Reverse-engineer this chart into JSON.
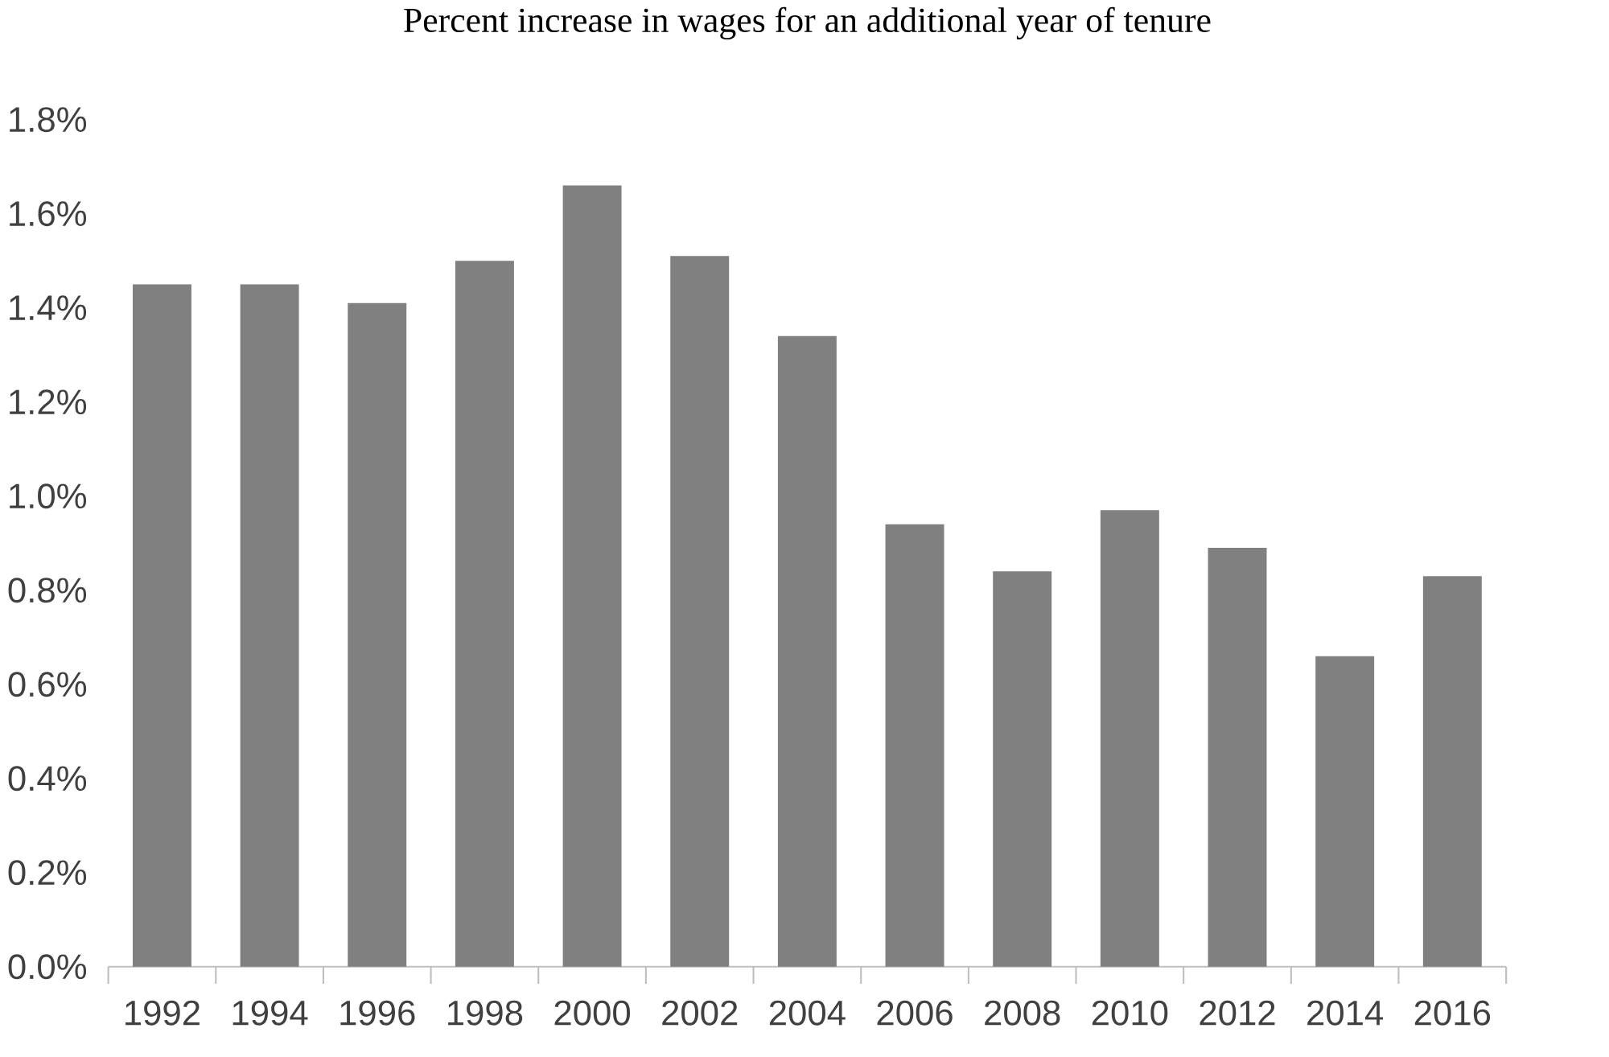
{
  "chart_data": {
    "type": "bar",
    "title": "Percent increase in wages for an additional year of tenure",
    "categories": [
      "1992",
      "1994",
      "1996",
      "1998",
      "2000",
      "2002",
      "2004",
      "2006",
      "2008",
      "2010",
      "2012",
      "2014",
      "2016"
    ],
    "values": [
      1.45,
      1.45,
      1.41,
      1.5,
      1.66,
      1.51,
      1.34,
      0.94,
      0.84,
      0.97,
      0.89,
      0.66,
      0.83
    ],
    "color": "#808080",
    "ylim": [
      0,
      1.8
    ],
    "yticks": [
      {
        "value": 0,
        "label": "0.0%"
      },
      {
        "value": 0.2,
        "label": "0.2%"
      },
      {
        "value": 0.4,
        "label": "0.4%"
      },
      {
        "value": 0.6,
        "label": "0.6%"
      },
      {
        "value": 0.8,
        "label": "0.8%"
      },
      {
        "value": 1.0,
        "label": "1.0%"
      },
      {
        "value": 1.2,
        "label": "1.2%"
      },
      {
        "value": 1.4,
        "label": "1.4%"
      },
      {
        "value": 1.6,
        "label": "1.6%"
      },
      {
        "value": 1.8,
        "label": "1.8%"
      }
    ]
  }
}
